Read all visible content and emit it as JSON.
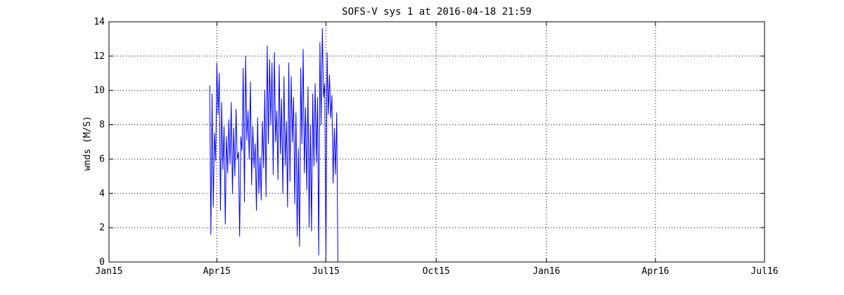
{
  "chart_data": {
    "type": "line",
    "title": "SOFS-V sys 1 at 2016-04-18 21:59",
    "xlabel": "",
    "ylabel": "wnds (M/S)",
    "x_ticks": [
      "Jan15",
      "Apr15",
      "Jul15",
      "Oct15",
      "Jan16",
      "Apr16",
      "Jul16"
    ],
    "x_tick_dates": [
      "2015-01-01",
      "2015-04-01",
      "2015-07-01",
      "2015-10-01",
      "2016-01-01",
      "2016-04-01",
      "2016-07-01"
    ],
    "xlim": [
      "2015-01-01",
      "2016-07-01"
    ],
    "ylim": [
      0,
      14
    ],
    "y_ticks": [
      0,
      2,
      4,
      6,
      8,
      10,
      12,
      14
    ],
    "grid": true,
    "series": [
      {
        "color": "#0000ff",
        "points": [
          [
            "2015-03-26",
            10.3
          ],
          [
            "2015-03-27",
            1.6
          ],
          [
            "2015-03-28",
            9.8
          ],
          [
            "2015-03-29",
            3.2
          ],
          [
            "2015-03-30",
            7.5
          ],
          [
            "2015-03-31",
            5.9
          ],
          [
            "2015-04-01",
            11.6
          ],
          [
            "2015-04-02",
            8.6
          ],
          [
            "2015-04-03",
            11.0
          ],
          [
            "2015-04-04",
            3.0
          ],
          [
            "2015-04-05",
            9.3
          ],
          [
            "2015-04-06",
            5.4
          ],
          [
            "2015-04-07",
            7.9
          ],
          [
            "2015-04-08",
            2.2
          ],
          [
            "2015-04-09",
            7.3
          ],
          [
            "2015-04-10",
            5.2
          ],
          [
            "2015-04-11",
            8.3
          ],
          [
            "2015-04-12",
            5.7
          ],
          [
            "2015-04-13",
            9.3
          ],
          [
            "2015-04-14",
            4.0
          ],
          [
            "2015-04-15",
            7.8
          ],
          [
            "2015-04-16",
            5.0
          ],
          [
            "2015-04-17",
            8.9
          ],
          [
            "2015-04-18",
            6.0
          ],
          [
            "2015-04-19",
            6.4
          ],
          [
            "2015-04-20",
            1.5
          ],
          [
            "2015-04-21",
            7.3
          ],
          [
            "2015-04-22",
            6.5
          ],
          [
            "2015-04-23",
            11.3
          ],
          [
            "2015-04-24",
            3.5
          ],
          [
            "2015-04-25",
            12.0
          ],
          [
            "2015-04-26",
            7.1
          ],
          [
            "2015-04-27",
            8.8
          ],
          [
            "2015-04-28",
            6.0
          ],
          [
            "2015-04-29",
            10.5
          ],
          [
            "2015-04-30",
            4.5
          ],
          [
            "2015-05-01",
            7.9
          ],
          [
            "2015-05-02",
            5.5
          ],
          [
            "2015-05-03",
            6.9
          ],
          [
            "2015-05-04",
            3.0
          ],
          [
            "2015-05-05",
            8.4
          ],
          [
            "2015-05-06",
            4.0
          ],
          [
            "2015-05-07",
            6.1
          ],
          [
            "2015-05-08",
            3.6
          ],
          [
            "2015-05-09",
            8.2
          ],
          [
            "2015-05-10",
            5.5
          ],
          [
            "2015-05-11",
            10.0
          ],
          [
            "2015-05-12",
            3.8
          ],
          [
            "2015-05-13",
            12.6
          ],
          [
            "2015-05-14",
            6.9
          ],
          [
            "2015-05-15",
            11.8
          ],
          [
            "2015-05-16",
            8.0
          ],
          [
            "2015-05-17",
            11.6
          ],
          [
            "2015-05-18",
            5.1
          ],
          [
            "2015-05-19",
            12.2
          ],
          [
            "2015-05-20",
            7.0
          ],
          [
            "2015-05-21",
            8.8
          ],
          [
            "2015-05-22",
            4.8
          ],
          [
            "2015-05-23",
            11.5
          ],
          [
            "2015-05-24",
            6.3
          ],
          [
            "2015-05-25",
            9.5
          ],
          [
            "2015-05-26",
            4.0
          ],
          [
            "2015-05-27",
            10.8
          ],
          [
            "2015-05-28",
            5.6
          ],
          [
            "2015-05-29",
            8.2
          ],
          [
            "2015-05-30",
            3.2
          ],
          [
            "2015-05-31",
            11.6
          ],
          [
            "2015-06-01",
            4.7
          ],
          [
            "2015-06-02",
            10.8
          ],
          [
            "2015-06-03",
            7.0
          ],
          [
            "2015-06-04",
            9.6
          ],
          [
            "2015-06-05",
            3.4
          ],
          [
            "2015-06-06",
            8.7
          ],
          [
            "2015-06-07",
            1.5
          ],
          [
            "2015-06-08",
            6.6
          ],
          [
            "2015-06-09",
            0.9
          ],
          [
            "2015-06-10",
            11.3
          ],
          [
            "2015-06-11",
            6.9
          ],
          [
            "2015-06-12",
            12.4
          ],
          [
            "2015-06-13",
            5.2
          ],
          [
            "2015-06-14",
            9.0
          ],
          [
            "2015-06-15",
            4.2
          ],
          [
            "2015-06-16",
            10.2
          ],
          [
            "2015-06-17",
            2.0
          ],
          [
            "2015-06-18",
            8.0
          ],
          [
            "2015-06-19",
            1.8
          ],
          [
            "2015-06-20",
            9.8
          ],
          [
            "2015-06-21",
            5.6
          ],
          [
            "2015-06-22",
            10.4
          ],
          [
            "2015-06-23",
            5.8
          ],
          [
            "2015-06-24",
            9.6
          ],
          [
            "2015-06-25",
            0.4
          ],
          [
            "2015-06-26",
            12.8
          ],
          [
            "2015-06-27",
            8.0
          ],
          [
            "2015-06-28",
            13.6
          ],
          [
            "2015-06-29",
            9.6
          ],
          [
            "2015-06-30",
            10.4
          ],
          [
            "2015-07-01",
            0.0
          ],
          [
            "2015-07-02",
            12.2
          ],
          [
            "2015-07-03",
            8.6
          ],
          [
            "2015-07-04",
            10.9
          ],
          [
            "2015-07-05",
            8.4
          ],
          [
            "2015-07-06",
            9.7
          ],
          [
            "2015-07-07",
            4.6
          ],
          [
            "2015-07-08",
            7.8
          ],
          [
            "2015-07-09",
            5.1
          ],
          [
            "2015-07-10",
            8.7
          ],
          [
            "2015-07-11",
            0.0
          ],
          [
            "2015-07-15",
            0.0
          ],
          [
            "2016-04-18",
            0.0
          ]
        ]
      }
    ]
  }
}
